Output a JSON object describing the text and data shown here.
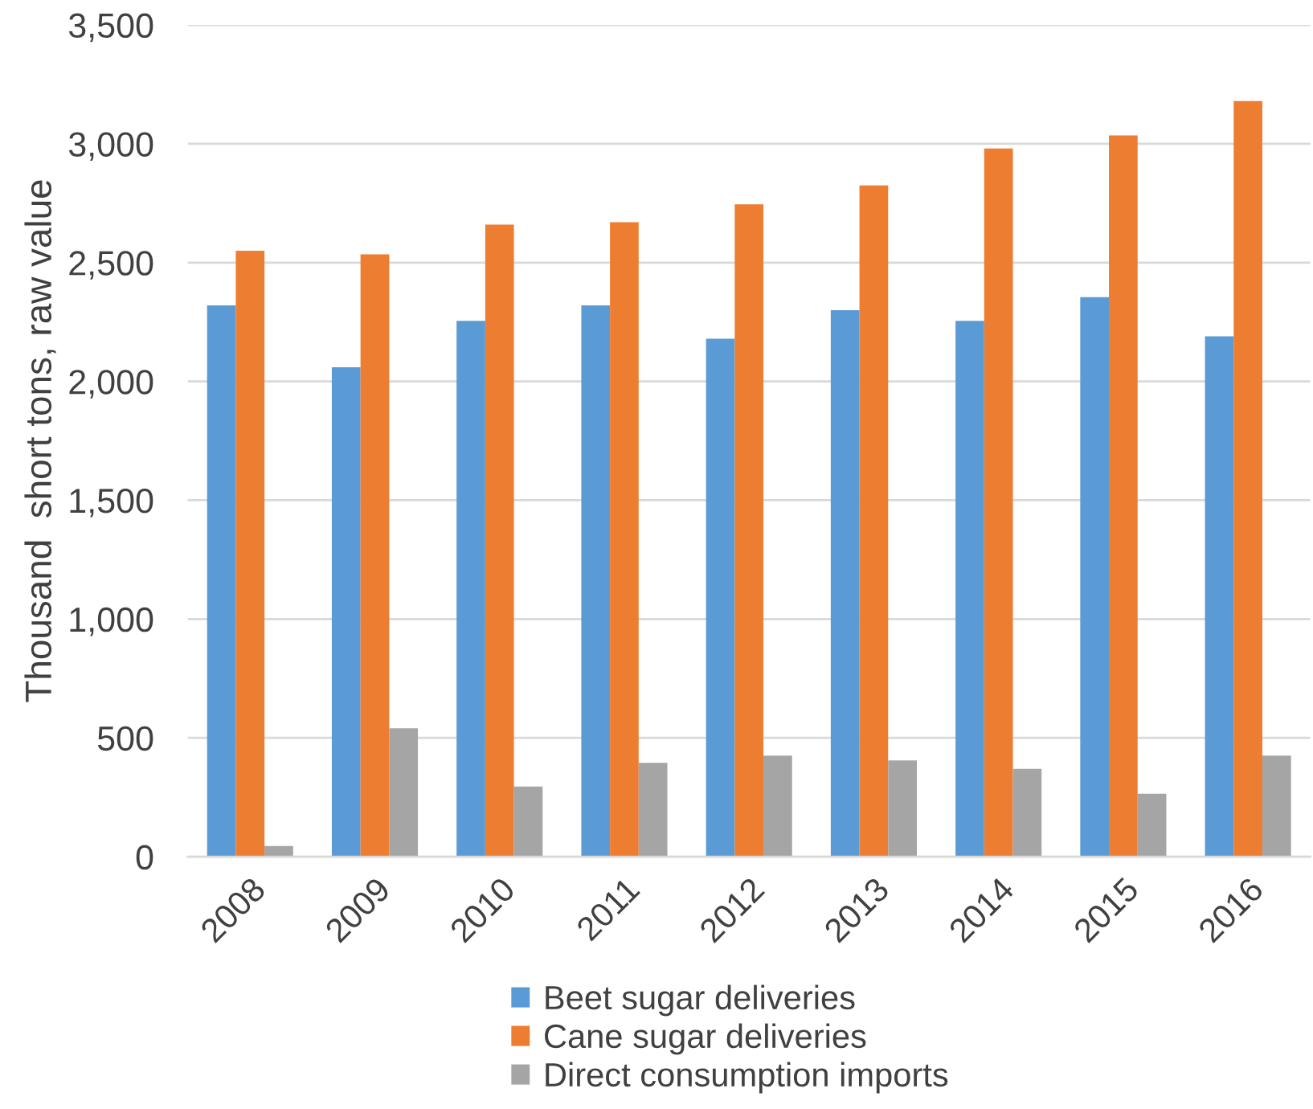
{
  "chart_data": {
    "type": "bar",
    "ylabel": "Thousand  short tons, raw value",
    "categories": [
      "2008",
      "2009",
      "2010",
      "2011",
      "2012",
      "2013",
      "2014",
      "2015",
      "2016"
    ],
    "series": [
      {
        "name": "Beet sugar deliveries",
        "color": "#5b9bd5",
        "values": [
          2320,
          2060,
          2255,
          2320,
          2180,
          2300,
          2255,
          2355,
          2190
        ]
      },
      {
        "name": "Cane sugar deliveries",
        "color": "#ed7d31",
        "values": [
          2550,
          2535,
          2660,
          2670,
          2745,
          2825,
          2980,
          3035,
          3180
        ]
      },
      {
        "name": "Direct consumption imports",
        "color": "#a5a5a5",
        "values": [
          45,
          540,
          295,
          395,
          425,
          405,
          370,
          265,
          425
        ]
      }
    ],
    "ylim": [
      0,
      3500
    ],
    "yticks": [
      0,
      500,
      {
        "value": 1000,
        "label": "1,000"
      },
      {
        "value": 1500,
        "label": "1,500"
      },
      {
        "value": 2000,
        "label": "2,000"
      },
      {
        "value": 2500,
        "label": "2,500"
      },
      {
        "value": 3000,
        "label": "3,000"
      },
      {
        "value": 3500,
        "label": "3,500"
      }
    ],
    "grid": "y",
    "legend": "bottom"
  }
}
